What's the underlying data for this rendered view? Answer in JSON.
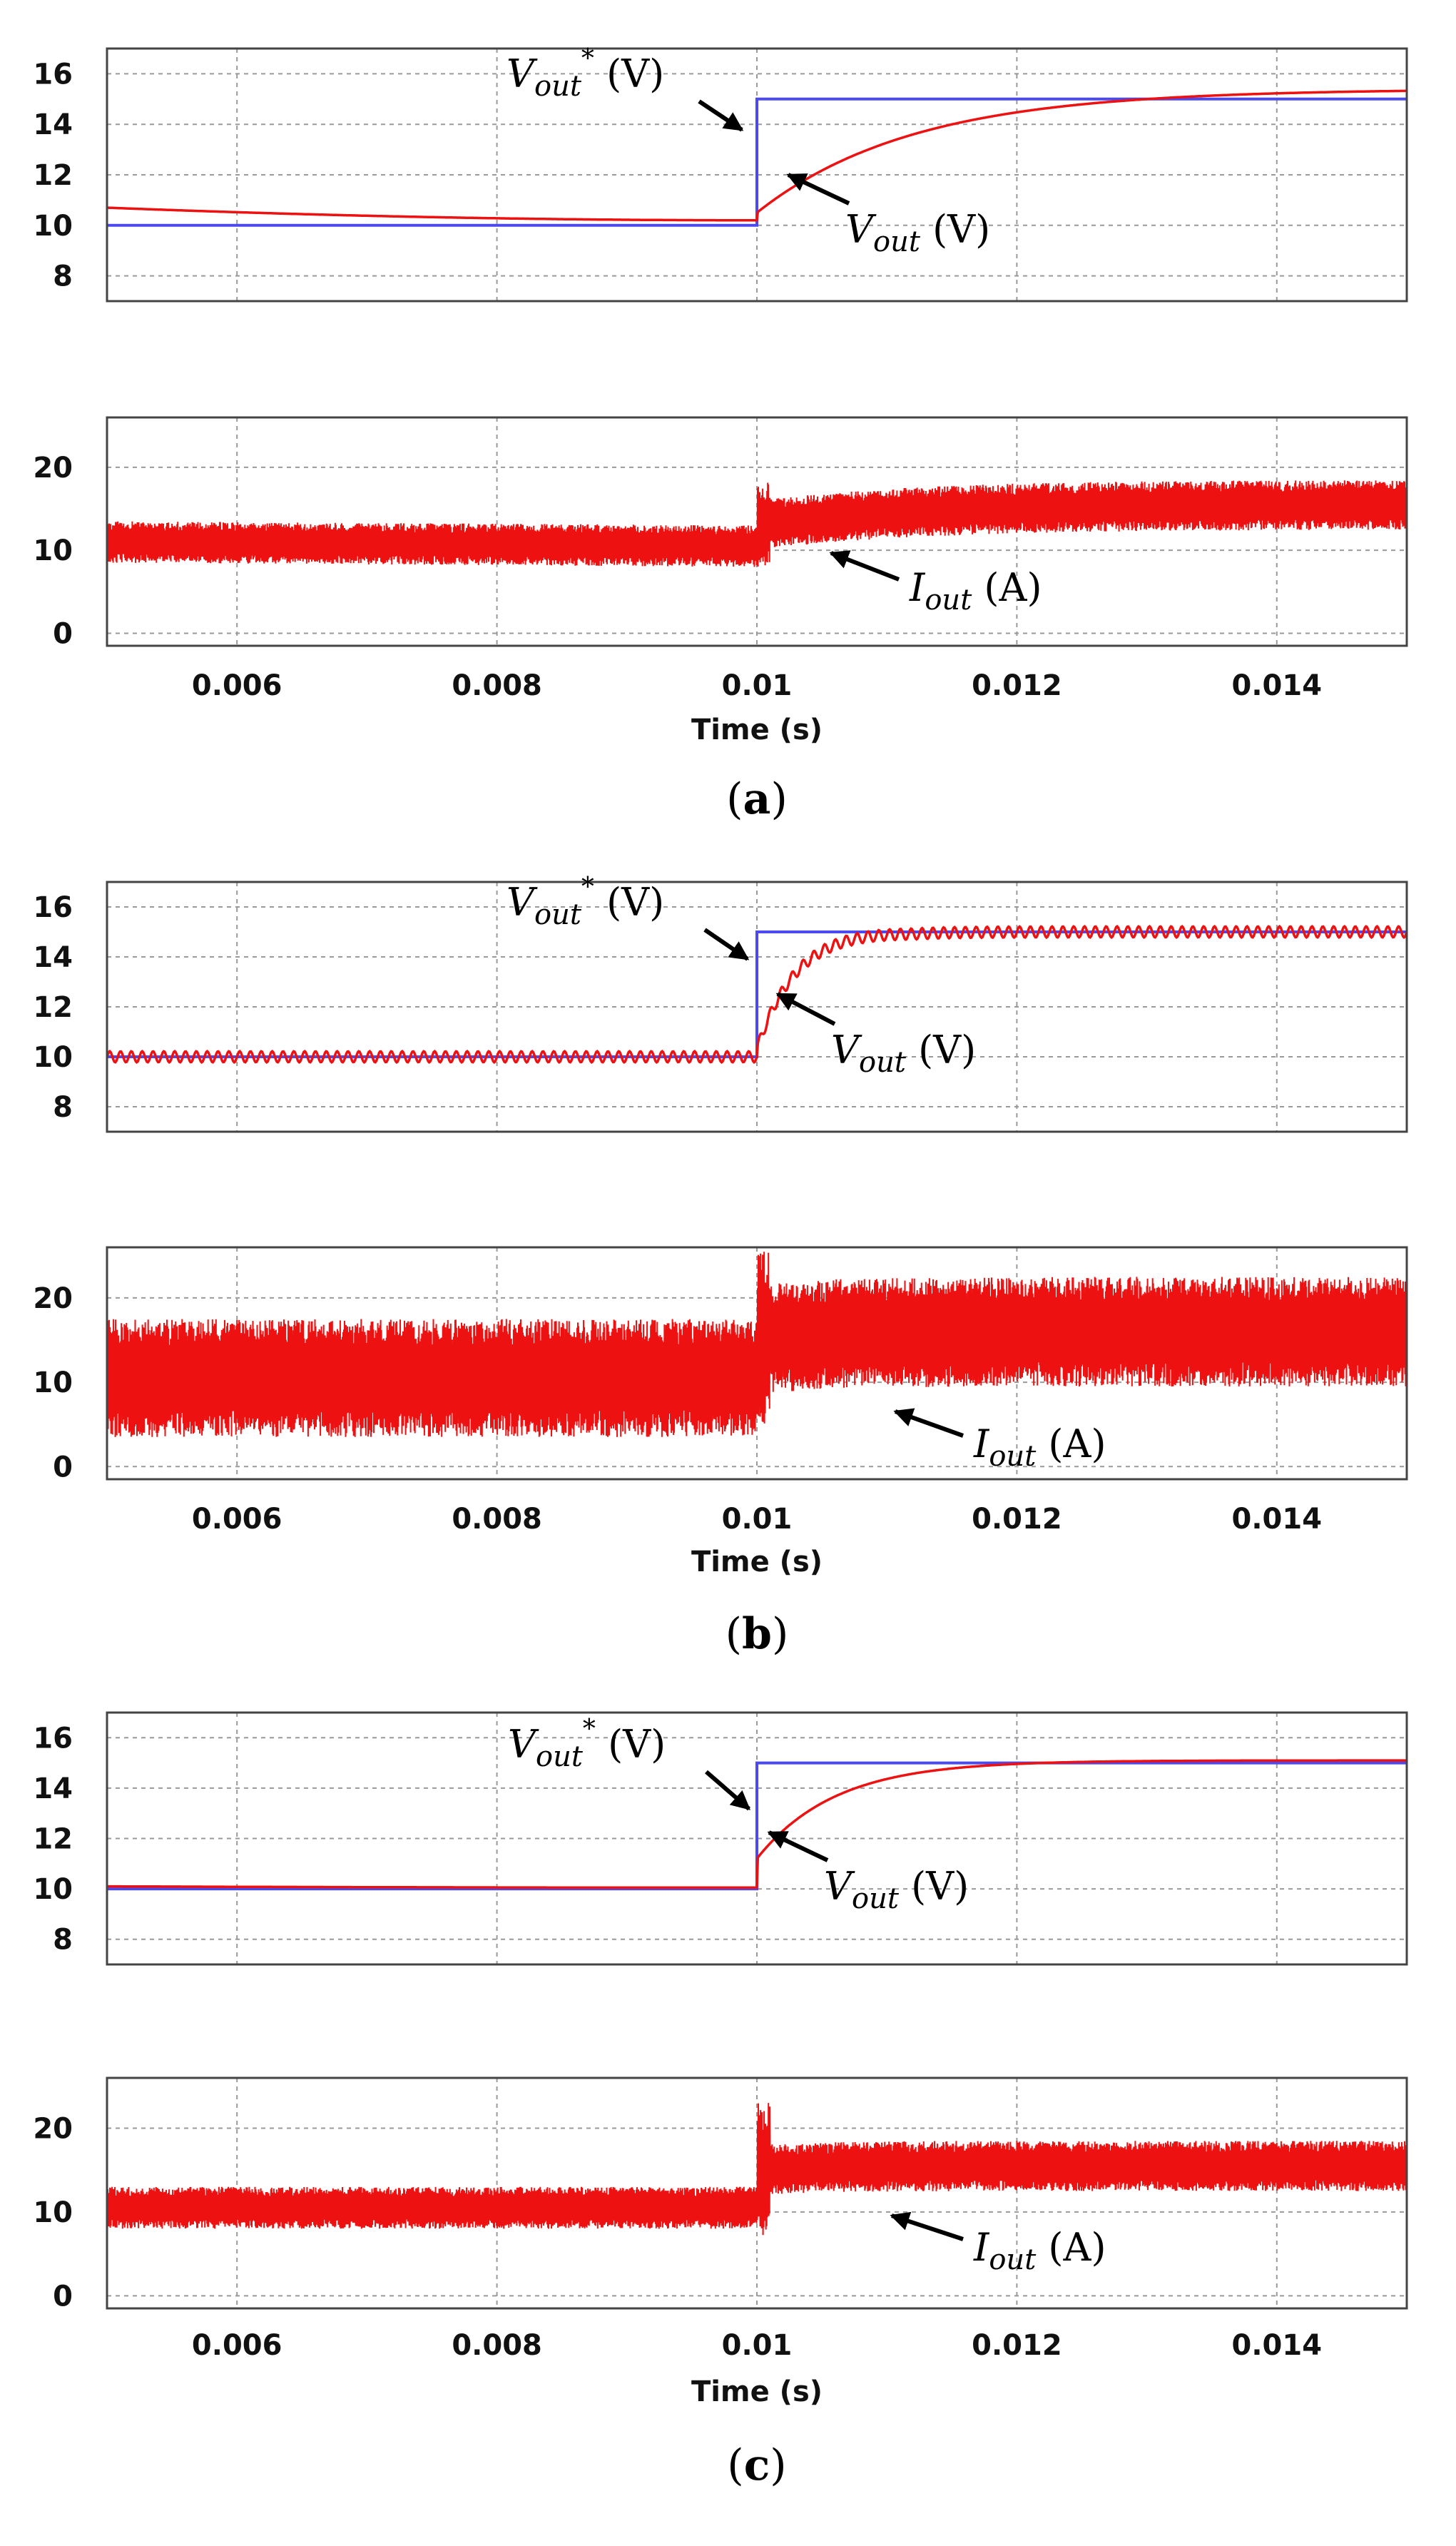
{
  "colors": {
    "reference": "#4a4af0",
    "measured": "#ee1111",
    "grid": "#9a9a9a",
    "frame": "#444444"
  },
  "x_axis": {
    "label": "Time (s)",
    "xlim": [
      0.005,
      0.015
    ],
    "ticks": [
      0.006,
      0.008,
      0.01,
      0.012,
      0.014
    ],
    "tick_labels": [
      "0.006",
      "0.008",
      "0.01",
      "0.012",
      "0.014"
    ]
  },
  "panels": [
    {
      "caption": {
        "open": "(",
        "letter": "a",
        "close": ")"
      },
      "voltage_annotations": [
        {
          "var": "V",
          "sub": "out",
          "sup": "*",
          "unit": " (V)"
        },
        {
          "var": "V",
          "sub": "out",
          "unit": " (V)"
        }
      ],
      "current_annotation": {
        "var": "I",
        "sub": "out",
        "unit": " (A)"
      }
    },
    {
      "caption": {
        "open": "(",
        "letter": "b",
        "close": ")"
      },
      "voltage_annotations": [
        {
          "var": "V",
          "sub": "out",
          "sup": "*",
          "unit": " (V)"
        },
        {
          "var": "V",
          "sub": "out",
          "unit": " (V)"
        }
      ],
      "current_annotation": {
        "var": "I",
        "sub": "out",
        "unit": " (A)"
      }
    },
    {
      "caption": {
        "open": "(",
        "letter": "c",
        "close": ")"
      },
      "voltage_annotations": [
        {
          "var": "V",
          "sub": "out",
          "sup": "*",
          "unit": " (V)"
        },
        {
          "var": "V",
          "sub": "out",
          "unit": " (V)"
        }
      ],
      "current_annotation": {
        "var": "I",
        "sub": "out",
        "unit": " (A)"
      }
    }
  ],
  "chart_data": [
    {
      "type": "line",
      "panel": "a",
      "plot": "output voltage",
      "xlabel": "",
      "ylabel": "",
      "xlim": [
        0.005,
        0.015
      ],
      "ylim": [
        7,
        17
      ],
      "yticks": [
        8,
        10,
        12,
        14,
        16
      ],
      "ytick_labels": [
        "8",
        "10",
        "12",
        "14",
        "16"
      ],
      "grid": true,
      "series": [
        {
          "name": "Vout* (V)",
          "color": "#4a4af0",
          "kind": "step",
          "x": [
            0.005,
            0.01,
            0.01,
            0.015
          ],
          "y": [
            10,
            10,
            15,
            15
          ]
        },
        {
          "name": "Vout (V)",
          "color": "#ee1111",
          "kind": "response",
          "pre": [
            10.7,
            10.2
          ],
          "post": [
            10.5,
            15.4
          ],
          "tau": 0.0012,
          "overshoot": 0,
          "ripple": 0.05,
          "ripple_cycles": 0
        }
      ]
    },
    {
      "type": "line",
      "panel": "a",
      "plot": "output current",
      "xlabel": "Time (s)",
      "ylabel": "",
      "xlim": [
        0.005,
        0.015
      ],
      "ylim": [
        -1.5,
        26
      ],
      "yticks": [
        0,
        10,
        20
      ],
      "ytick_labels": [
        "0",
        "10",
        "20"
      ],
      "grid": true,
      "series": [
        {
          "name": "Iout (A)",
          "color": "#ee1111",
          "kind": "ripple",
          "before": [
            11,
            10.5
          ],
          "after_start": 13,
          "after_peak": 15.5,
          "after_end": 15.5,
          "tau": 0.0012,
          "amp_before": 2.5,
          "amp_after": 3,
          "spike": 2
        }
      ]
    },
    {
      "type": "line",
      "panel": "b",
      "plot": "output voltage",
      "xlabel": "",
      "ylabel": "",
      "xlim": [
        0.005,
        0.015
      ],
      "ylim": [
        7,
        17
      ],
      "yticks": [
        8,
        10,
        12,
        14,
        16
      ],
      "ytick_labels": [
        "8",
        "10",
        "12",
        "14",
        "16"
      ],
      "grid": true,
      "series": [
        {
          "name": "Vout* (V)",
          "color": "#4a4af0",
          "kind": "step",
          "x": [
            0.005,
            0.01,
            0.01,
            0.015
          ],
          "y": [
            10,
            10,
            15,
            15
          ]
        },
        {
          "name": "Vout (V)",
          "color": "#ee1111",
          "kind": "response",
          "pre": [
            10,
            10
          ],
          "post": [
            10.3,
            15
          ],
          "tau": 0.0003,
          "overshoot": 0.15,
          "ripple": 0.22,
          "ripple_cycles": 60
        }
      ]
    },
    {
      "type": "line",
      "panel": "b",
      "plot": "output current",
      "xlabel": "Time (s)",
      "ylabel": "",
      "xlim": [
        0.005,
        0.015
      ],
      "ylim": [
        -1.5,
        26
      ],
      "yticks": [
        0,
        10,
        20
      ],
      "ytick_labels": [
        "0",
        "10",
        "20"
      ],
      "grid": true,
      "series": [
        {
          "name": "Iout (A)",
          "color": "#ee1111",
          "kind": "ripple",
          "before": [
            10.5,
            10.5
          ],
          "after_start": 15,
          "after_peak": 16,
          "after_end": 16,
          "tau": 0.0005,
          "amp_before": 7,
          "amp_after": 6.5,
          "spike": 4
        }
      ]
    },
    {
      "type": "line",
      "panel": "c",
      "plot": "output voltage",
      "xlabel": "",
      "ylabel": "",
      "xlim": [
        0.005,
        0.015
      ],
      "ylim": [
        7,
        17
      ],
      "yticks": [
        8,
        10,
        12,
        14,
        16
      ],
      "ytick_labels": [
        "8",
        "10",
        "12",
        "14",
        "16"
      ],
      "grid": true,
      "series": [
        {
          "name": "Vout* (V)",
          "color": "#4a4af0",
          "kind": "step",
          "x": [
            0.005,
            0.01,
            0.01,
            0.015
          ],
          "y": [
            10,
            10,
            15,
            15
          ]
        },
        {
          "name": "Vout (V)",
          "color": "#ee1111",
          "kind": "response",
          "pre": [
            10.1,
            10.05
          ],
          "post": [
            11.2,
            15.1
          ],
          "tau": 0.0006,
          "overshoot": 0,
          "ripple": 0.06,
          "ripple_cycles": 0
        }
      ]
    },
    {
      "type": "line",
      "panel": "c",
      "plot": "output current",
      "xlabel": "Time (s)",
      "ylabel": "",
      "xlim": [
        0.005,
        0.015
      ],
      "ylim": [
        -1.5,
        26
      ],
      "yticks": [
        0,
        10,
        20
      ],
      "ytick_labels": [
        "0",
        "10",
        "20"
      ],
      "grid": true,
      "series": [
        {
          "name": "Iout (A)",
          "color": "#ee1111",
          "kind": "ripple",
          "before": [
            10.5,
            10.5
          ],
          "after_start": 15,
          "after_peak": 15.5,
          "after_end": 15.5,
          "tau": 0.0005,
          "amp_before": 2.5,
          "amp_after": 3,
          "spike": 5
        }
      ]
    }
  ]
}
